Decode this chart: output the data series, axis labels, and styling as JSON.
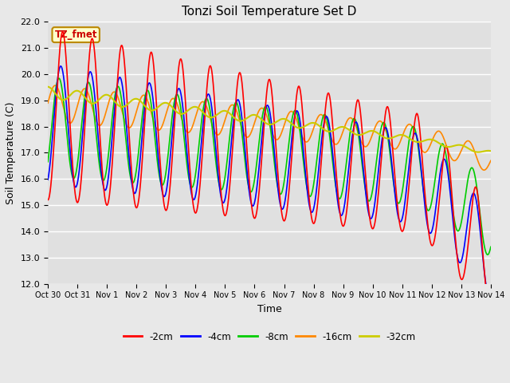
{
  "title": "Tonzi Soil Temperature Set D",
  "xlabel": "Time",
  "ylabel": "Soil Temperature (C)",
  "ylim": [
    12.0,
    22.0
  ],
  "yticks": [
    12.0,
    13.0,
    14.0,
    15.0,
    16.0,
    17.0,
    18.0,
    19.0,
    20.0,
    21.0,
    22.0
  ],
  "colors": {
    "-2cm": "#ff0000",
    "-4cm": "#0000ff",
    "-8cm": "#00cc00",
    "-16cm": "#ff8800",
    "-32cm": "#cccc00"
  },
  "annotation_text": "TZ_fmet",
  "annotation_color": "#cc0000",
  "annotation_bg": "#ffffcc",
  "fig_bg": "#e8e8e8",
  "plot_bg": "#e0e0e0",
  "grid_color": "#ffffff",
  "xtick_labels": [
    "Oct 30",
    "Oct 31",
    "Nov 1",
    "Nov 2",
    "Nov 3",
    "Nov 4",
    "Nov 5",
    "Nov 6",
    "Nov 7",
    "Nov 8",
    "Nov 9",
    "Nov 10",
    "Nov 11",
    "Nov 12",
    "Nov 13",
    "Nov 14"
  ],
  "xlim": [
    0,
    15
  ]
}
